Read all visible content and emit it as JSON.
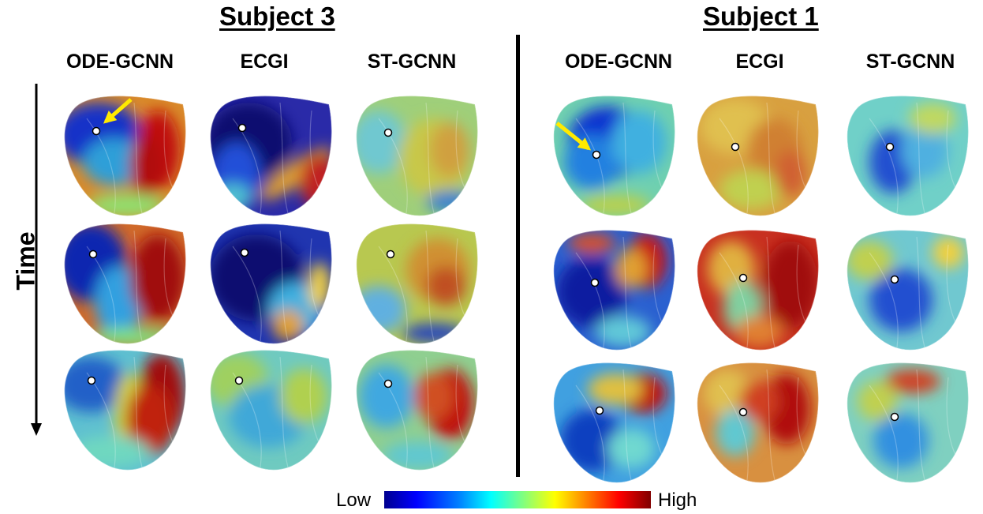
{
  "subjects": [
    {
      "title": "Subject 3",
      "columns": [
        "ODE-GCNN",
        "ECGI",
        "ST-GCNN"
      ]
    },
    {
      "title": "Subject 1",
      "columns": [
        "ODE-GCNN",
        "ECGI",
        "ST-GCNN"
      ]
    }
  ],
  "time_label": "Time",
  "colorbar": {
    "low": "Low",
    "high": "High",
    "colors": [
      "#00008f",
      "#0000ff",
      "#0080ff",
      "#00ffff",
      "#80ff80",
      "#ffff00",
      "#ff8000",
      "#ff0000",
      "#800000"
    ]
  },
  "arrow_color": "#ffea00"
}
